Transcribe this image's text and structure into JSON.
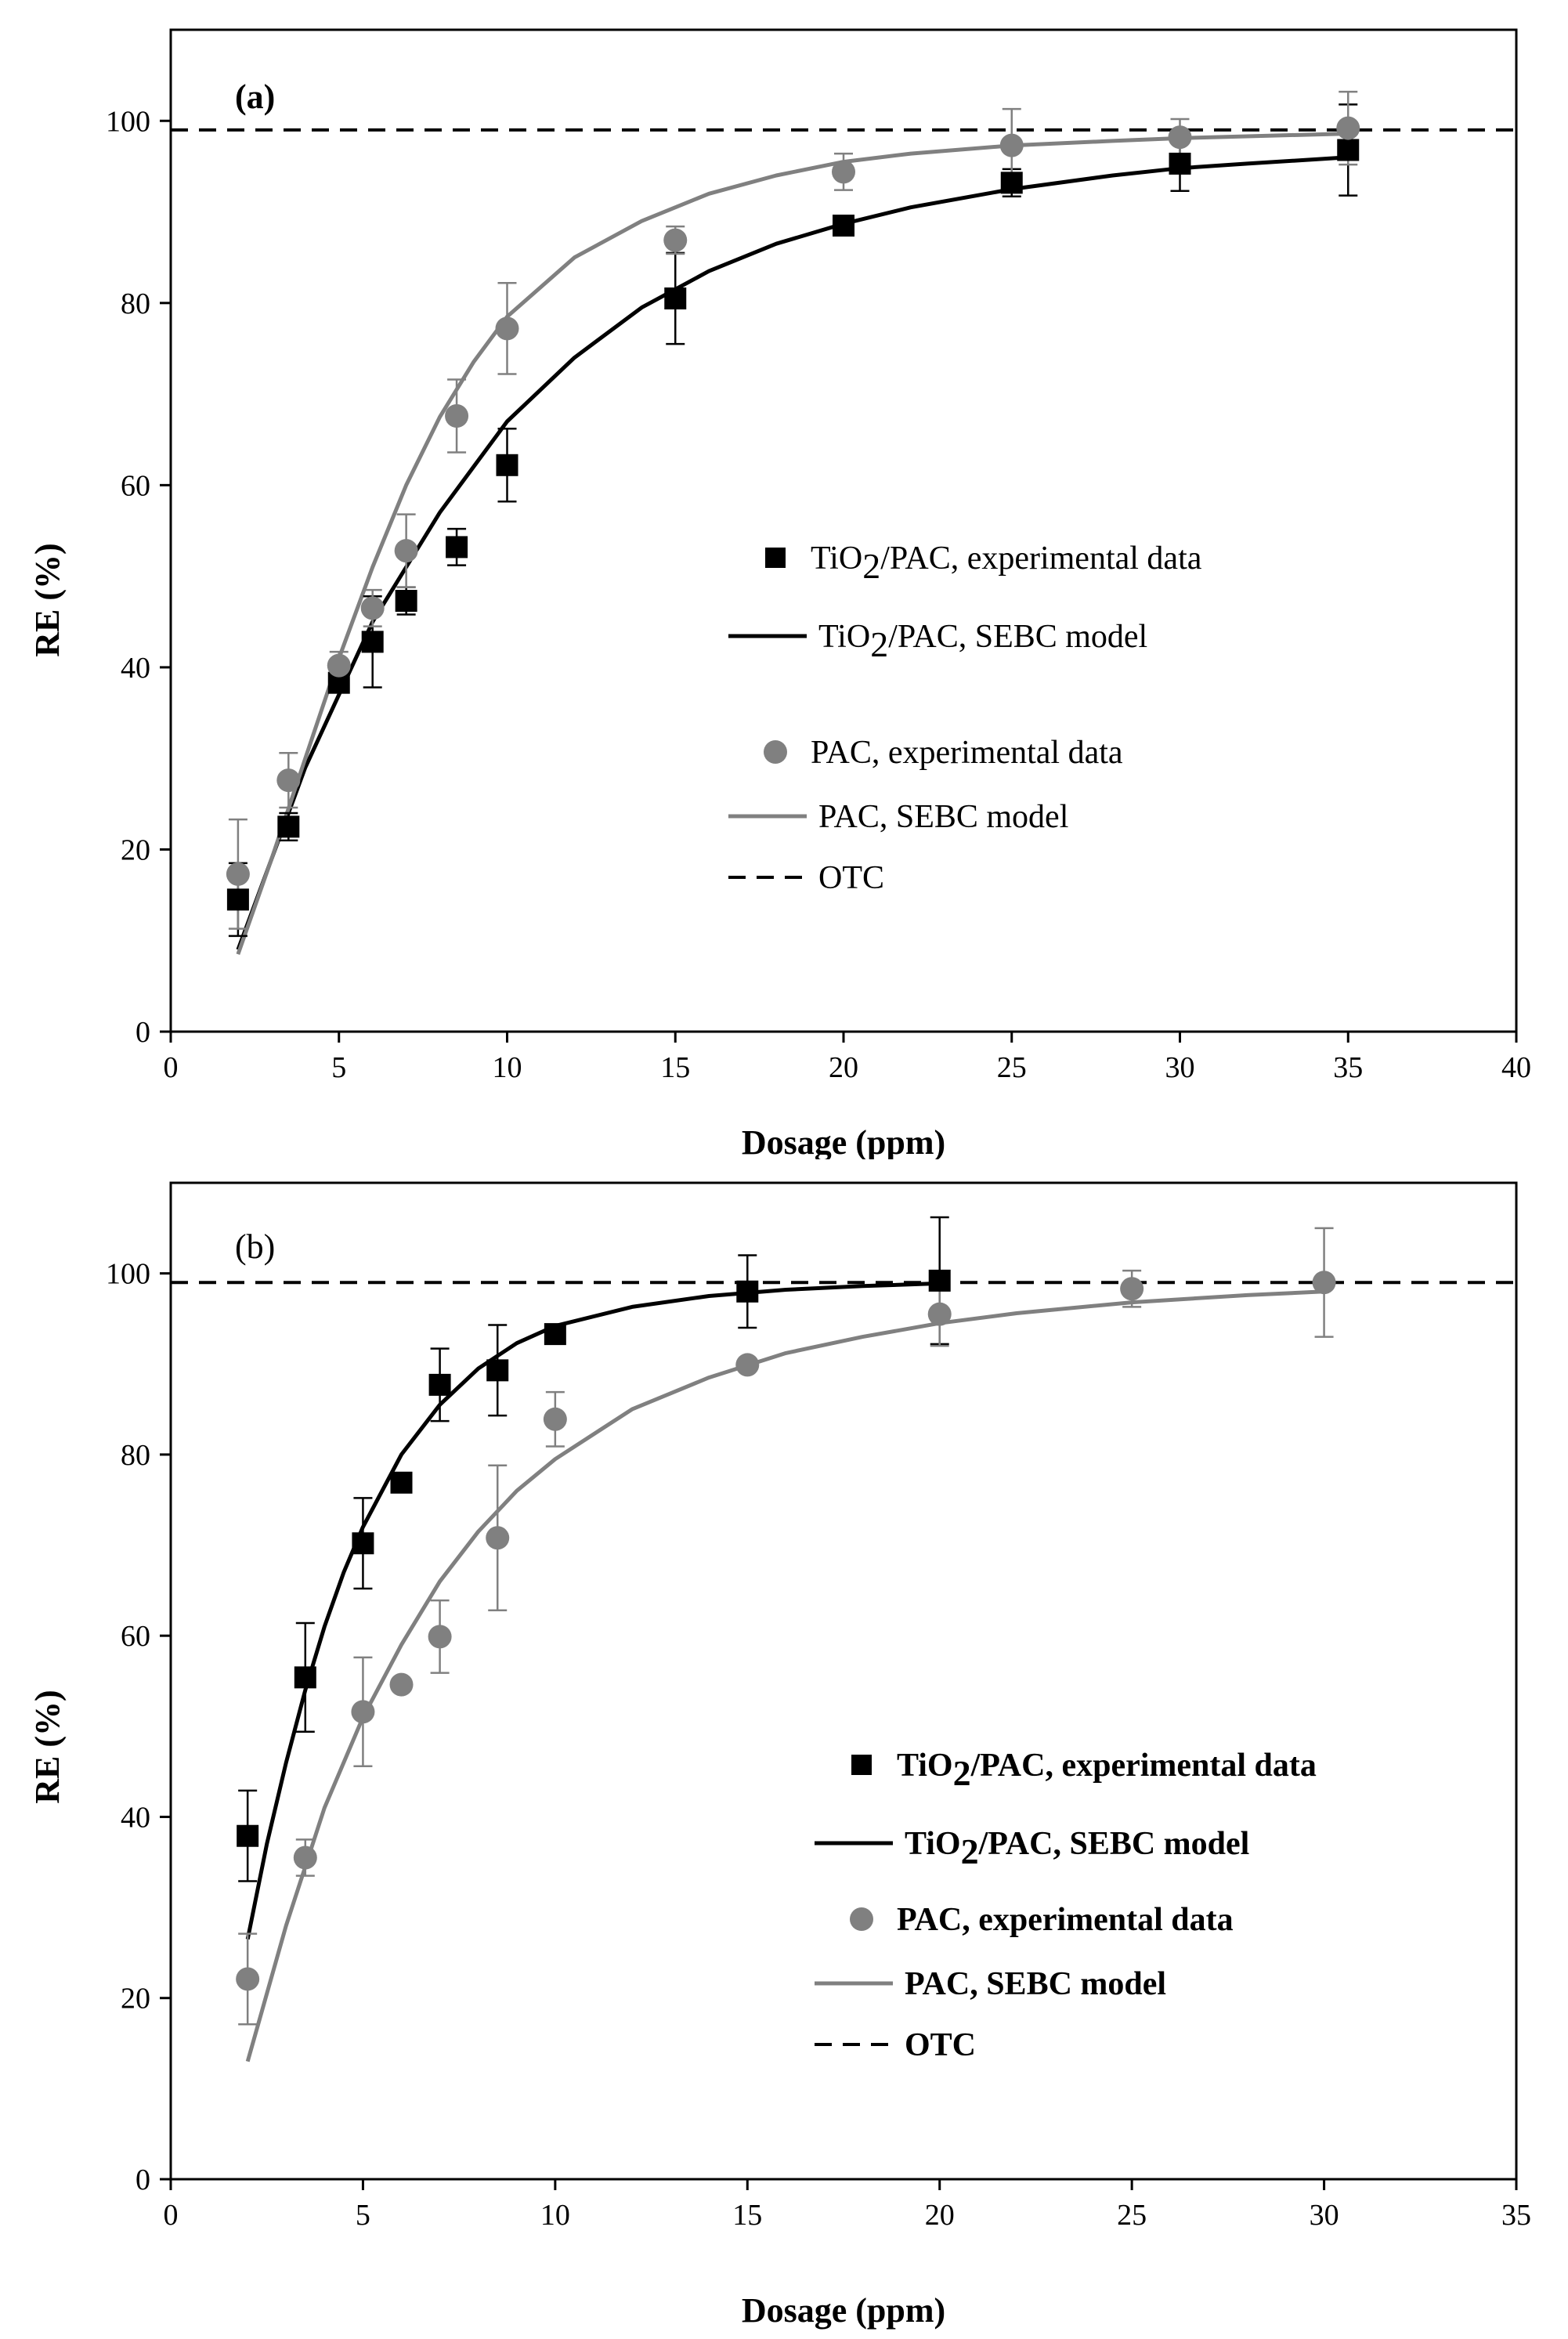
{
  "chart_data": [
    {
      "panel": "(a)",
      "type": "scatter",
      "xlabel": "Dosage (ppm)",
      "ylabel": "RE (%)",
      "xlim": [
        0,
        40
      ],
      "ylim": [
        0,
        110
      ],
      "xticks": [
        0,
        5,
        10,
        15,
        20,
        25,
        30,
        35,
        40
      ],
      "yticks": [
        0,
        20,
        40,
        60,
        80,
        100
      ],
      "reference_line": {
        "name": "OTC",
        "y": 99
      },
      "series": [
        {
          "name": "TiO2/PAC, experimental data",
          "label_main": "TiO",
          "label_sub": "2",
          "label_rest": "/PAC, experimental data",
          "color": "#000000",
          "marker": "square",
          "x": [
            2,
            3.5,
            5,
            6,
            7,
            8.5,
            10,
            15,
            20,
            25,
            30,
            35
          ],
          "y": [
            14.5,
            22.5,
            38.3,
            42.8,
            47.3,
            53.2,
            62.2,
            80.5,
            88.5,
            93.2,
            95.3,
            96.8
          ],
          "err": [
            4.0,
            1.5,
            1.0,
            5.0,
            1.5,
            2.0,
            4.0,
            5.0,
            1.0,
            1.5,
            3.0,
            5.0
          ]
        },
        {
          "name": "TiO2/PAC, SEBC model",
          "label_main": "TiO",
          "label_sub": "2",
          "label_rest": "/PAC, SEBC model",
          "color": "#000000",
          "marker": "line",
          "x": [
            2,
            3,
            4,
            5,
            6,
            7,
            8,
            9,
            10,
            12,
            14,
            16,
            18,
            20,
            22,
            25,
            28,
            30,
            32,
            35
          ],
          "y": [
            9,
            19,
            29,
            37,
            45,
            51,
            57,
            62,
            67,
            74,
            79.5,
            83.5,
            86.5,
            88.7,
            90.5,
            92.5,
            94,
            94.8,
            95.3,
            96
          ]
        },
        {
          "name": "PAC, experimental data",
          "label_main": "PAC, experimental data",
          "color": "#808080",
          "marker": "circle",
          "x": [
            2,
            3.5,
            5,
            6,
            7,
            8.5,
            10,
            15,
            20,
            25,
            30,
            35
          ],
          "y": [
            17.3,
            27.6,
            40.2,
            46.5,
            52.8,
            67.6,
            77.2,
            86.9,
            94.4,
            97.3,
            98.2,
            99.2
          ],
          "err": [
            6.0,
            3.0,
            1.5,
            2.0,
            4.0,
            4.0,
            5.0,
            1.5,
            2.0,
            4.0,
            2.0,
            4.0
          ]
        },
        {
          "name": "PAC, SEBC model",
          "label_main": "PAC, SEBC model",
          "color": "#808080",
          "marker": "line",
          "x": [
            2,
            3,
            4,
            5,
            6,
            7,
            8,
            9,
            10,
            12,
            14,
            16,
            18,
            20,
            22,
            25,
            28,
            30,
            32,
            35
          ],
          "y": [
            8.5,
            19,
            30,
            41,
            51,
            60,
            67.5,
            73.5,
            78.5,
            85,
            89,
            92,
            94,
            95.5,
            96.4,
            97.3,
            97.8,
            98.1,
            98.3,
            98.6
          ]
        }
      ],
      "legend": {
        "placement": "center-right",
        "otc_label": "OTC"
      }
    },
    {
      "panel": "(b)",
      "type": "scatter",
      "xlabel": "Dosage (ppm)",
      "ylabel": "RE (%)",
      "xlim": [
        0,
        35
      ],
      "ylim": [
        0,
        110
      ],
      "xticks": [
        0,
        5,
        10,
        15,
        20,
        25,
        30,
        35
      ],
      "yticks": [
        0,
        20,
        40,
        60,
        80,
        100
      ],
      "reference_line": {
        "name": "OTC",
        "y": 99
      },
      "series": [
        {
          "name": "TiO2/PAC, experimental data",
          "label_main": "TiO",
          "label_sub": "2",
          "label_rest": "/PAC, experimental data",
          "color": "#000000",
          "marker": "square",
          "x": [
            2,
            3.5,
            5,
            6,
            7,
            8.5,
            10,
            15,
            20
          ],
          "y": [
            37.9,
            55.4,
            70.2,
            76.9,
            87.7,
            89.3,
            93.3,
            98.0,
            99.2
          ],
          "err": [
            5.0,
            6.0,
            5.0,
            0,
            4.0,
            5.0,
            0,
            4.0,
            7.0
          ]
        },
        {
          "name": "TiO2/PAC, SEBC model",
          "label_main": "TiO",
          "label_sub": "2",
          "label_rest": "/PAC, SEBC model",
          "color": "#000000",
          "marker": "line",
          "x": [
            2,
            2.5,
            3,
            3.5,
            4,
            4.5,
            5,
            6,
            7,
            8,
            9,
            10,
            12,
            14,
            16,
            18,
            20
          ],
          "y": [
            26.5,
            37,
            46,
            54,
            61,
            67,
            72,
            80,
            85.5,
            89.5,
            92.3,
            94.2,
            96.3,
            97.5,
            98.2,
            98.6,
            98.9
          ]
        },
        {
          "name": "PAC, experimental data",
          "label_main": "PAC, experimental data",
          "color": "#808080",
          "marker": "circle",
          "x": [
            2,
            3.5,
            5,
            6,
            7,
            8.5,
            10,
            15,
            20,
            25,
            30
          ],
          "y": [
            22.1,
            35.5,
            51.6,
            54.6,
            59.9,
            70.8,
            83.9,
            89.9,
            95.5,
            98.3,
            99.0
          ],
          "err": [
            5.0,
            2.0,
            6.0,
            0,
            4.0,
            8.0,
            3.0,
            0,
            3.5,
            2.0,
            6.0
          ]
        },
        {
          "name": "PAC, SEBC model",
          "label_main": "PAC, SEBC model",
          "color": "#808080",
          "marker": "line",
          "x": [
            2,
            3,
            4,
            5,
            6,
            7,
            8,
            9,
            10,
            12,
            14,
            16,
            18,
            20,
            22,
            25,
            28,
            30
          ],
          "y": [
            13,
            28,
            41,
            51,
            59,
            66,
            71.5,
            76,
            79.5,
            85,
            88.5,
            91.2,
            93,
            94.5,
            95.6,
            96.8,
            97.6,
            98
          ]
        }
      ],
      "legend": {
        "placement": "center-right",
        "otc_label": "OTC"
      }
    }
  ]
}
